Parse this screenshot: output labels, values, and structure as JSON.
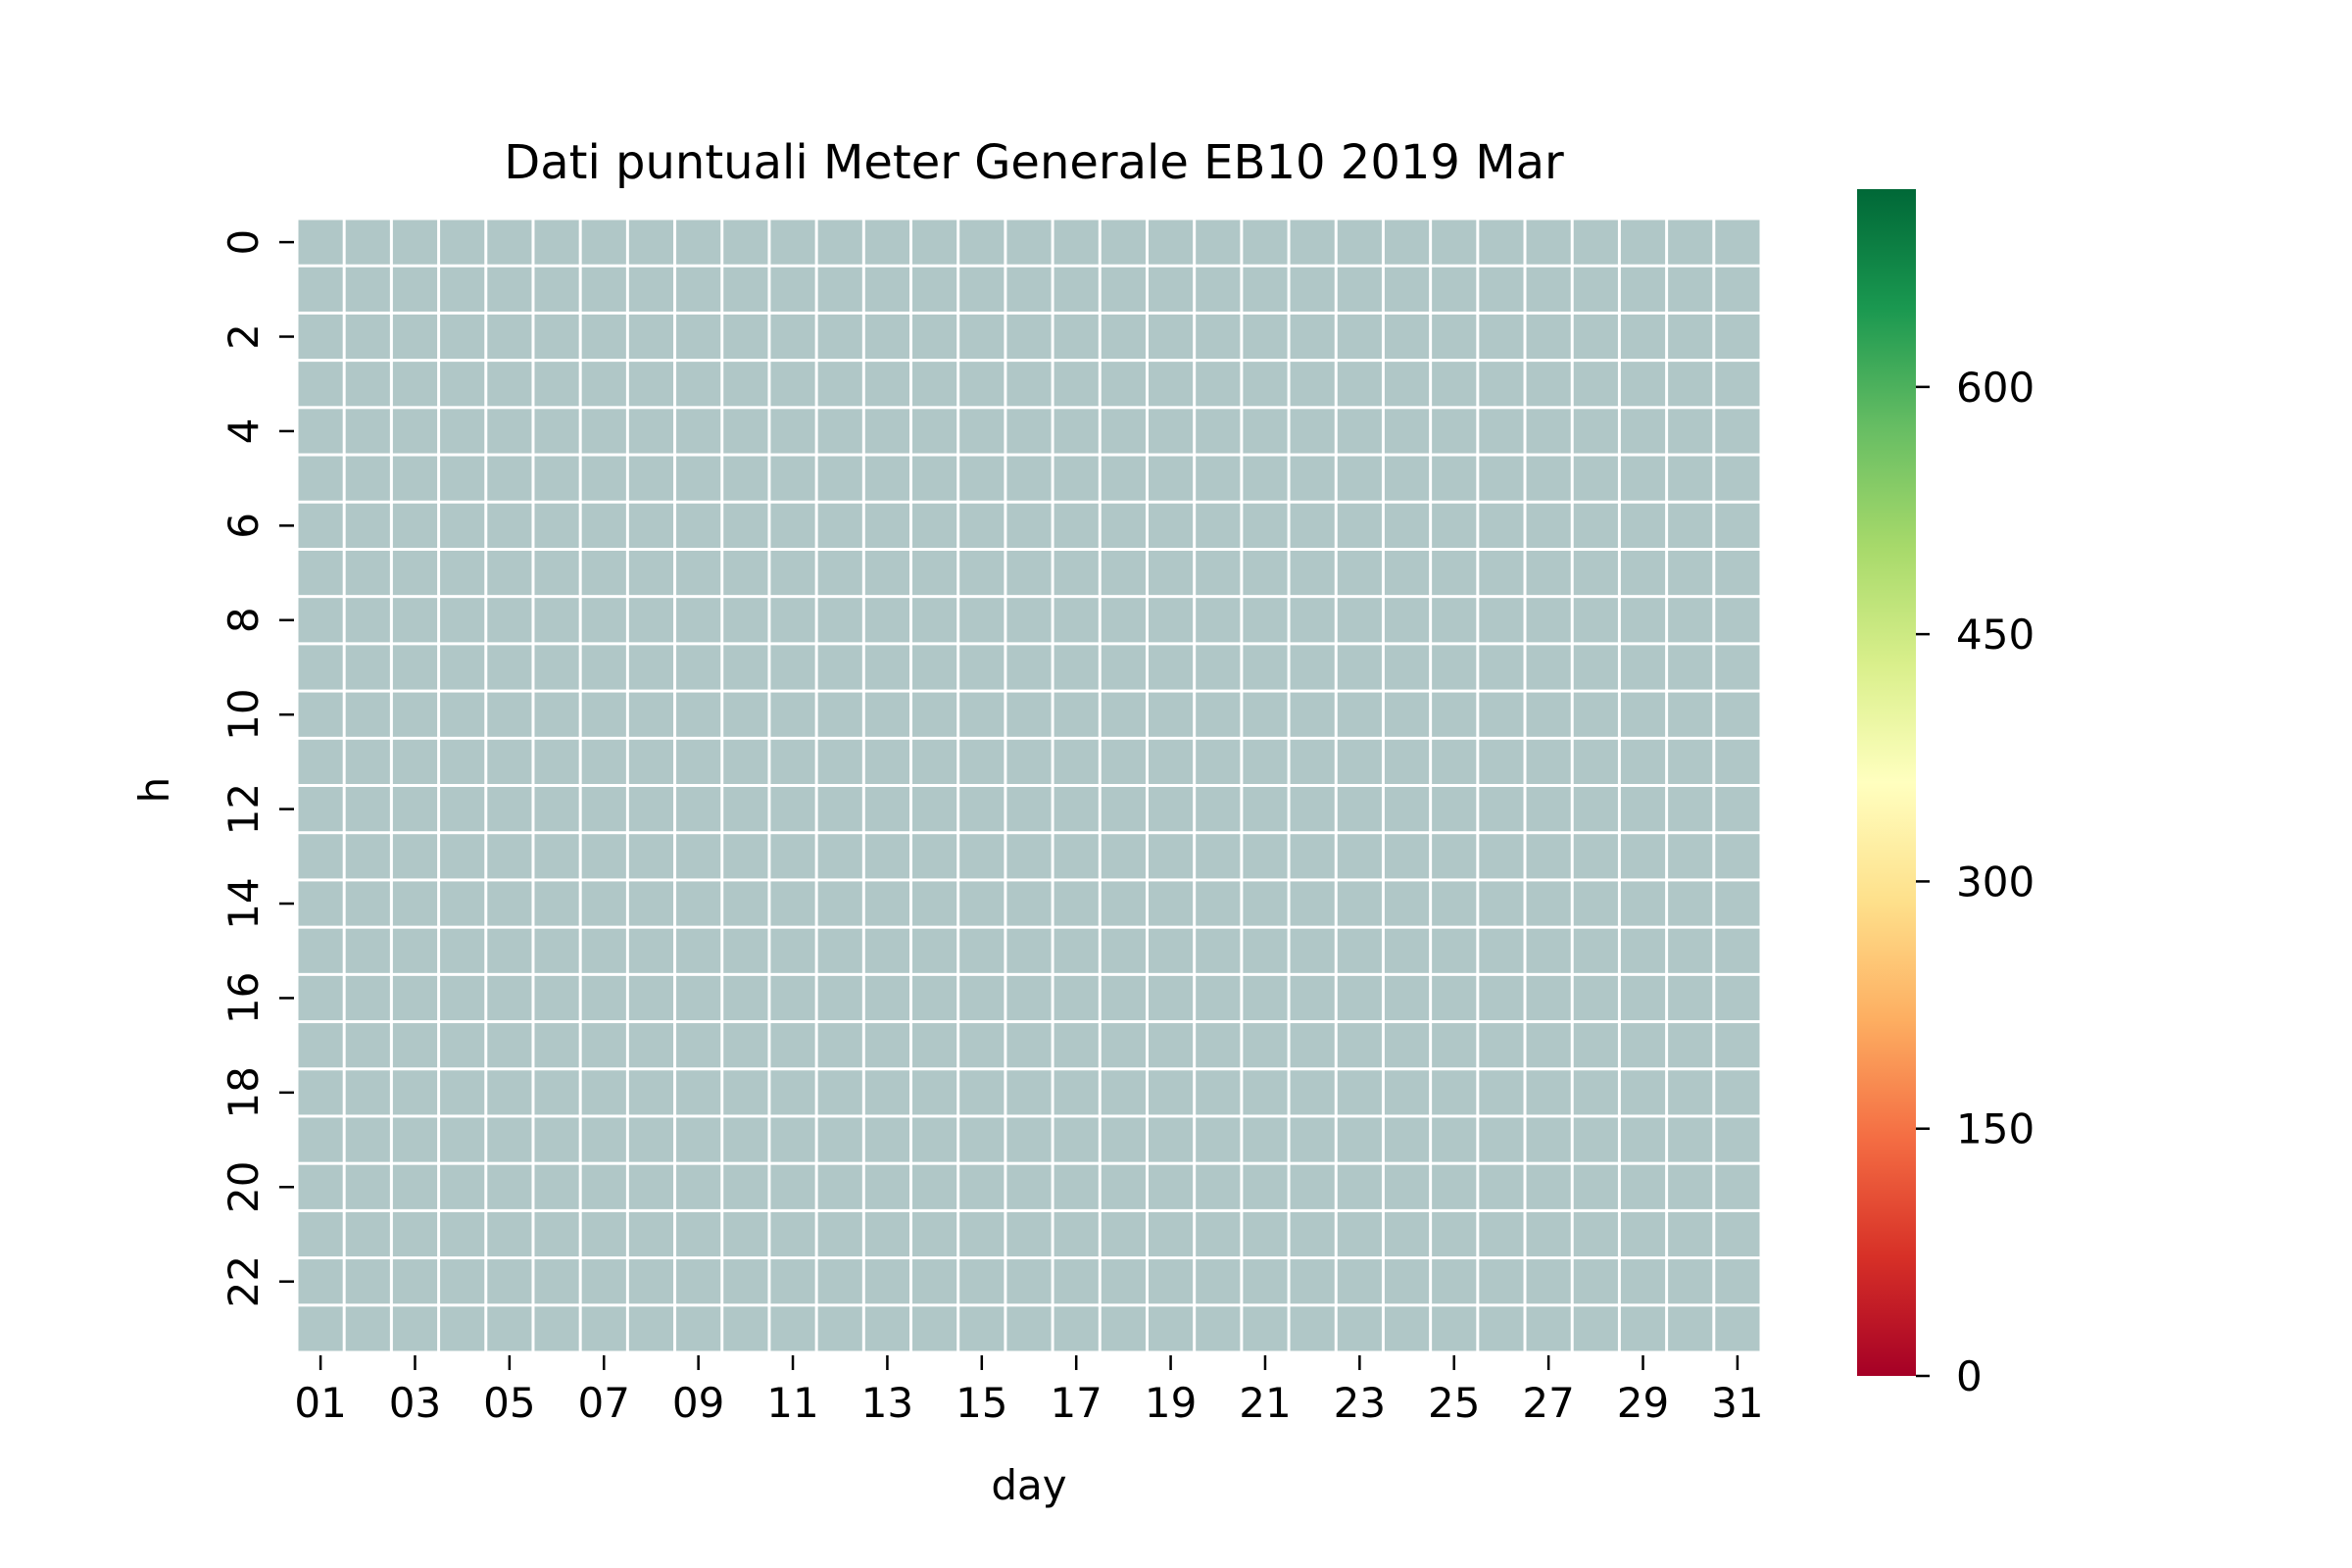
{
  "chart_data": {
    "type": "heatmap",
    "title": "Dati puntuali Meter Generale EB10 2019 Mar",
    "xlabel": "day",
    "ylabel": "h",
    "x_categories": [
      "01",
      "02",
      "03",
      "04",
      "05",
      "06",
      "07",
      "08",
      "09",
      "10",
      "11",
      "12",
      "13",
      "14",
      "15",
      "16",
      "17",
      "18",
      "19",
      "20",
      "21",
      "22",
      "23",
      "24",
      "25",
      "26",
      "27",
      "28",
      "29",
      "30",
      "31"
    ],
    "x_tick_labels": [
      "01",
      "03",
      "05",
      "07",
      "09",
      "11",
      "13",
      "15",
      "17",
      "19",
      "21",
      "23",
      "25",
      "27",
      "29",
      "31"
    ],
    "y_categories": [
      "0",
      "1",
      "2",
      "3",
      "4",
      "5",
      "6",
      "7",
      "8",
      "9",
      "10",
      "11",
      "12",
      "13",
      "14",
      "15",
      "16",
      "17",
      "18",
      "19",
      "20",
      "21",
      "22",
      "23"
    ],
    "y_tick_labels": [
      "0",
      "2",
      "4",
      "6",
      "8",
      "10",
      "12",
      "14",
      "16",
      "18",
      "20",
      "22"
    ],
    "values": "all cells missing (no data)",
    "missing_color": "#b0c7c7",
    "grid_line_color": "#ffffff",
    "colorbar": {
      "colormap": "RdYlGn",
      "colors": [
        "#a50026",
        "#d73027",
        "#f46d43",
        "#fdae61",
        "#fee08b",
        "#ffffbf",
        "#d9ef8b",
        "#a6d96a",
        "#66bd63",
        "#1a9850",
        "#006837"
      ],
      "vmin": 0,
      "vmax": 720,
      "tick_labels": [
        "0",
        "150",
        "300",
        "450",
        "600"
      ],
      "ticks": [
        0,
        150,
        300,
        450,
        600
      ]
    }
  }
}
